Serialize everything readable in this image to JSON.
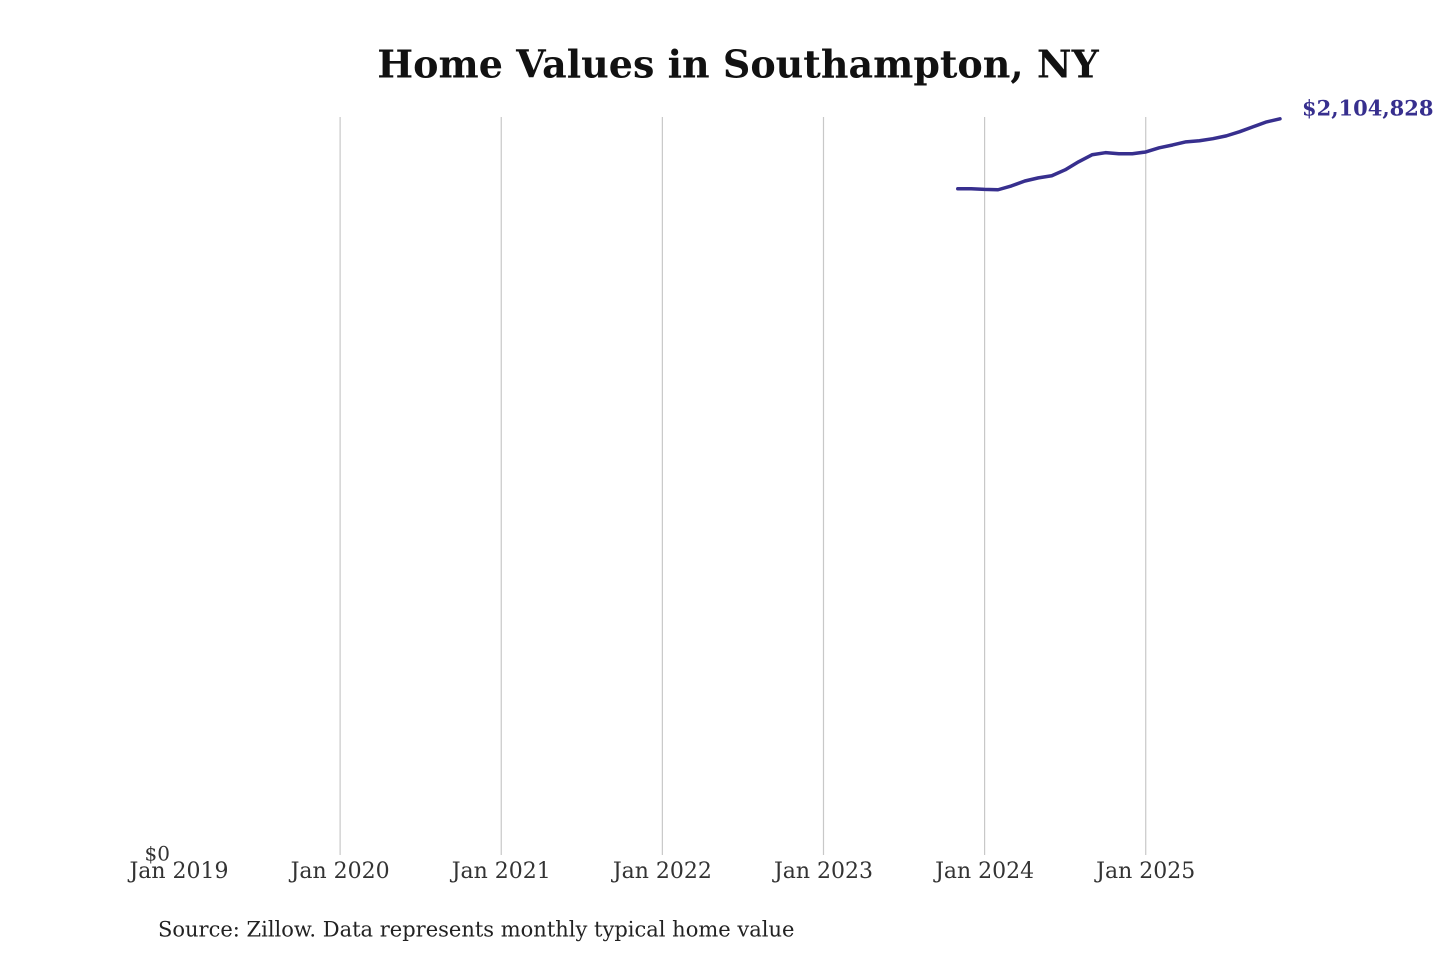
{
  "chart_data": {
    "type": "line",
    "title": "Home Values in Southampton, NY",
    "source": "Source: Zillow. Data represents monthly typical home value",
    "x": [
      "2023-11",
      "2023-12",
      "2024-01",
      "2024-02",
      "2024-03",
      "2024-04",
      "2024-05",
      "2024-06",
      "2024-07",
      "2024-08",
      "2024-09",
      "2024-10",
      "2024-11",
      "2024-12",
      "2025-01",
      "2025-02",
      "2025-03",
      "2025-04",
      "2025-05",
      "2025-06",
      "2025-07",
      "2025-08",
      "2025-09",
      "2025-10",
      "2025-11"
    ],
    "series": [
      {
        "name": "Southampton, NY",
        "color": "#372f8e",
        "values": [
          1905000,
          1905000,
          1903000,
          1902000,
          1913000,
          1927000,
          1936000,
          1942000,
          1959000,
          1982000,
          2002000,
          2008000,
          2005000,
          2005000,
          2010000,
          2022000,
          2030000,
          2039000,
          2042000,
          2048000,
          2056000,
          2068000,
          2082000,
          2096000,
          2104828
        ],
        "value_labels": [
          null,
          null,
          null,
          null,
          null,
          null,
          null,
          null,
          null,
          null,
          null,
          null,
          null,
          null,
          null,
          null,
          null,
          null,
          null,
          null,
          null,
          null,
          null,
          null,
          "$2,104,828"
        ]
      }
    ],
    "xlim": [
      "2019-01",
      "2025-11"
    ],
    "xticks": [
      {
        "value": "2019-01",
        "label": "Jan 2019"
      },
      {
        "value": "2020-01",
        "label": "Jan 2020"
      },
      {
        "value": "2021-01",
        "label": "Jan 2021"
      },
      {
        "value": "2022-01",
        "label": "Jan 2022"
      },
      {
        "value": "2023-01",
        "label": "Jan 2023"
      },
      {
        "value": "2024-01",
        "label": "Jan 2024"
      },
      {
        "value": "2025-01",
        "label": "Jan 2025"
      }
    ],
    "ylim": [
      0,
      2110000
    ],
    "yticks": [
      {
        "value": 0,
        "label": "$0"
      }
    ],
    "grid": true
  }
}
